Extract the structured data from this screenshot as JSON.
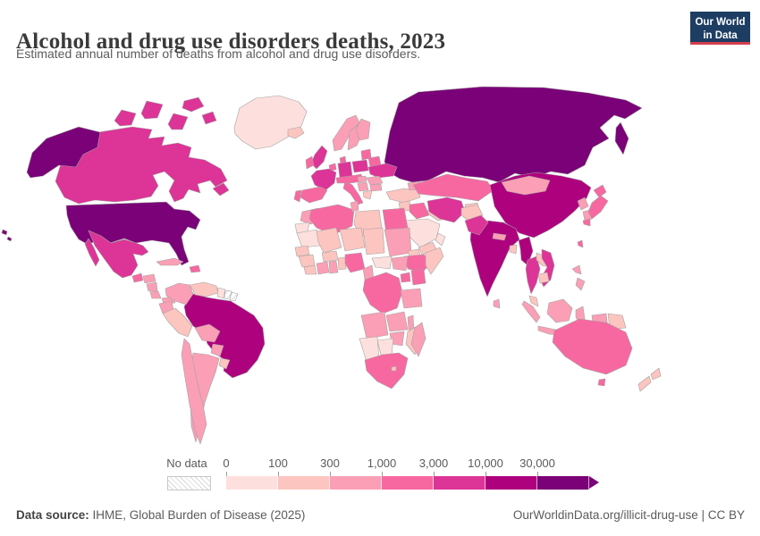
{
  "header": {
    "title": "Alcohol and drug use disorders deaths, 2023",
    "subtitle": "Estimated annual number of deaths from alcohol and drug use disorders.",
    "logo": {
      "line1": "Our World",
      "line2": "in Data",
      "bg_color": "#1d3d63",
      "accent_color": "#d73e4d"
    }
  },
  "legend": {
    "no_data_label": "No data",
    "ticks": [
      "0",
      "100",
      "300",
      "1,000",
      "3,000",
      "10,000",
      "30,000"
    ],
    "bins": [
      {
        "range": "0–100",
        "color": "#fde0dd"
      },
      {
        "range": "100–300",
        "color": "#fcc5c0"
      },
      {
        "range": "300–1,000",
        "color": "#fa9fb5"
      },
      {
        "range": "1,000–3,000",
        "color": "#f768a1"
      },
      {
        "range": "3,000–10,000",
        "color": "#dd3497"
      },
      {
        "range": "10,000–30,000",
        "color": "#ae017e"
      },
      {
        "range": "30,000+",
        "color": "#7a0177"
      }
    ]
  },
  "footer": {
    "source_label": "Data source:",
    "source_text": " IHME, Global Burden of Disease (2025)",
    "right_text": "OurWorldinData.org/illicit-drug-use | CC BY"
  },
  "chart_data": {
    "type": "choropleth",
    "title": "Alcohol and drug use disorders deaths, 2023",
    "subtitle": "Estimated annual number of deaths from alcohol and drug use disorders.",
    "unit": "deaths per year",
    "year": 2023,
    "scale": "log-binned",
    "bin_edges": [
      0,
      100,
      300,
      1000,
      3000,
      10000,
      30000
    ],
    "bin_labels": [
      "0–100",
      "100–300",
      "300–1,000",
      "1,000–3,000",
      "3,000–10,000",
      "10,000–30,000",
      "30,000+"
    ],
    "bin_colors": [
      "#fde0dd",
      "#fcc5c0",
      "#fa9fb5",
      "#f768a1",
      "#dd3497",
      "#ae017e",
      "#7a0177"
    ],
    "no_data": "hatched white",
    "countries": {
      "usa": {
        "name": "United States",
        "bin": 6
      },
      "canada": {
        "name": "Canada",
        "bin": 4
      },
      "greenland": {
        "name": "Greenland",
        "bin": 0
      },
      "mexico": {
        "name": "Mexico",
        "bin": 4
      },
      "guatemala": {
        "name": "Guatemala",
        "bin": 3
      },
      "honduras": {
        "name": "Honduras",
        "bin": 2
      },
      "nicaragua": {
        "name": "Nicaragua",
        "bin": 2
      },
      "costa-rica": {
        "name": "Costa Rica",
        "bin": 2
      },
      "panama": {
        "name": "Panama",
        "bin": 2
      },
      "cuba": {
        "name": "Cuba",
        "bin": 2
      },
      "hispaniola": {
        "name": "Dominican Republic / Haiti",
        "bin": 3
      },
      "brazil": {
        "name": "Brazil",
        "bin": 5
      },
      "colombia": {
        "name": "Colombia",
        "bin": 2
      },
      "venezuela": {
        "name": "Venezuela",
        "bin": 1
      },
      "guyana": {
        "name": "Guyana",
        "bin": 0
      },
      "suriname": {
        "name": "Suriname",
        "bin": -1
      },
      "french-guiana": {
        "name": "French Guiana",
        "bin": -1
      },
      "ecuador": {
        "name": "Ecuador",
        "bin": 2
      },
      "peru": {
        "name": "Peru",
        "bin": 1
      },
      "bolivia": {
        "name": "Bolivia",
        "bin": 2
      },
      "paraguay": {
        "name": "Paraguay",
        "bin": 2
      },
      "chile": {
        "name": "Chile",
        "bin": 2
      },
      "argentina": {
        "name": "Argentina",
        "bin": 2
      },
      "uruguay": {
        "name": "Uruguay",
        "bin": 1
      },
      "iceland": {
        "name": "Iceland",
        "bin": 1
      },
      "norway": {
        "name": "Norway",
        "bin": 2
      },
      "sweden": {
        "name": "Sweden",
        "bin": 2
      },
      "finland": {
        "name": "Finland",
        "bin": 2
      },
      "uk": {
        "name": "United Kingdom",
        "bin": 4
      },
      "ireland": {
        "name": "Ireland",
        "bin": 3
      },
      "denmark": {
        "name": "Denmark",
        "bin": 3
      },
      "benelux": {
        "name": "Belgium / Netherlands",
        "bin": 3
      },
      "germany": {
        "name": "Germany",
        "bin": 4
      },
      "france": {
        "name": "France",
        "bin": 4
      },
      "spain": {
        "name": "Spain",
        "bin": 3
      },
      "portugal": {
        "name": "Portugal",
        "bin": 3
      },
      "italy": {
        "name": "Italy",
        "bin": 3
      },
      "central-europe": {
        "name": "Switzerland / Austria / Czechia",
        "bin": 3
      },
      "poland": {
        "name": "Poland",
        "bin": 4
      },
      "baltics": {
        "name": "Baltic states",
        "bin": 3
      },
      "belarus": {
        "name": "Belarus",
        "bin": 3
      },
      "ukraine": {
        "name": "Ukraine",
        "bin": 4
      },
      "romania": {
        "name": "Romania",
        "bin": 2
      },
      "hungary": {
        "name": "Hungary",
        "bin": 2
      },
      "balkans": {
        "name": "Balkans",
        "bin": 2
      },
      "greece": {
        "name": "Greece",
        "bin": 1
      },
      "bulgaria": {
        "name": "Bulgaria",
        "bin": 2
      },
      "turkey": {
        "name": "Turkey",
        "bin": 1
      },
      "caucasus": {
        "name": "Georgia / Azerbaijan",
        "bin": 2
      },
      "russia": {
        "name": "Russia",
        "bin": 6
      },
      "kazakhstan": {
        "name": "Kazakhstan",
        "bin": 3
      },
      "uzbekistan": {
        "name": "Uzbekistan",
        "bin": 3
      },
      "turkmenistan": {
        "name": "Turkmenistan",
        "bin": 1
      },
      "kyrgyzstan-tajikistan": {
        "name": "Kyrgyzstan / Tajikistan",
        "bin": 1
      },
      "syria": {
        "name": "Syria",
        "bin": 1
      },
      "levant": {
        "name": "Israel / Jordan",
        "bin": 2
      },
      "iraq": {
        "name": "Iraq",
        "bin": 3
      },
      "iran": {
        "name": "Iran",
        "bin": 4
      },
      "saudi-arabia": {
        "name": "Saudi Arabia",
        "bin": 0
      },
      "yemen": {
        "name": "Yemen",
        "bin": 1
      },
      "oman": {
        "name": "Oman",
        "bin": 0
      },
      "afghanistan": {
        "name": "Afghanistan",
        "bin": 1
      },
      "pakistan": {
        "name": "Pakistan",
        "bin": 4
      },
      "india": {
        "name": "India",
        "bin": 5
      },
      "nepal": {
        "name": "Nepal",
        "bin": 2
      },
      "bangladesh": {
        "name": "Bangladesh",
        "bin": 1
      },
      "sri-lanka": {
        "name": "Sri Lanka",
        "bin": 2
      },
      "china": {
        "name": "China",
        "bin": 5
      },
      "mongolia": {
        "name": "Mongolia",
        "bin": 2
      },
      "north-korea": {
        "name": "North Korea",
        "bin": 2
      },
      "south-korea": {
        "name": "South Korea",
        "bin": 2
      },
      "japan": {
        "name": "Japan",
        "bin": 3
      },
      "taiwan": {
        "name": "Taiwan",
        "bin": 3
      },
      "myanmar": {
        "name": "Myanmar",
        "bin": 5
      },
      "thailand": {
        "name": "Thailand",
        "bin": 4
      },
      "laos": {
        "name": "Laos",
        "bin": 1
      },
      "vietnam": {
        "name": "Vietnam",
        "bin": 4
      },
      "cambodia": {
        "name": "Cambodia",
        "bin": 1
      },
      "malaysia": {
        "name": "Malaysia",
        "bin": 1
      },
      "indonesia": {
        "name": "Indonesia",
        "bin": 2
      },
      "papua-new-guinea": {
        "name": "Papua New Guinea",
        "bin": 1
      },
      "philippines": {
        "name": "Philippines",
        "bin": 2
      },
      "morocco": {
        "name": "Morocco",
        "bin": 2
      },
      "western-sahara": {
        "name": "Western Sahara",
        "bin": 0
      },
      "algeria": {
        "name": "Algeria",
        "bin": 3
      },
      "tunisia": {
        "name": "Tunisia",
        "bin": 2
      },
      "libya": {
        "name": "Libya",
        "bin": 1
      },
      "egypt": {
        "name": "Egypt",
        "bin": 3
      },
      "mauritania": {
        "name": "Mauritania",
        "bin": 0
      },
      "mali": {
        "name": "Mali",
        "bin": 1
      },
      "niger": {
        "name": "Niger",
        "bin": 1
      },
      "chad": {
        "name": "Chad",
        "bin": 1
      },
      "sudan": {
        "name": "Sudan",
        "bin": 2
      },
      "eritrea": {
        "name": "Eritrea",
        "bin": 1
      },
      "ethiopia": {
        "name": "Ethiopia",
        "bin": 3
      },
      "somalia": {
        "name": "Somalia",
        "bin": 1
      },
      "senegal": {
        "name": "Senegal",
        "bin": 1
      },
      "guinea": {
        "name": "Guinea",
        "bin": 1
      },
      "sierra-leone-liberia": {
        "name": "Sierra Leone / Liberia",
        "bin": 1
      },
      "ivory-coast": {
        "name": "Côte d'Ivoire",
        "bin": 2
      },
      "ghana": {
        "name": "Ghana",
        "bin": 2
      },
      "burkina-faso": {
        "name": "Burkina Faso",
        "bin": 1
      },
      "togo-benin": {
        "name": "Togo / Benin",
        "bin": 1
      },
      "nigeria": {
        "name": "Nigeria",
        "bin": 3
      },
      "cameroon": {
        "name": "Cameroon",
        "bin": 2
      },
      "central-african-republic": {
        "name": "Central African Republic",
        "bin": 0
      },
      "south-sudan": {
        "name": "South Sudan",
        "bin": 2
      },
      "drc": {
        "name": "Democratic Republic of Congo",
        "bin": 3
      },
      "uganda": {
        "name": "Uganda",
        "bin": 3
      },
      "kenya": {
        "name": "Kenya",
        "bin": 3
      },
      "tanzania": {
        "name": "Tanzania",
        "bin": 2
      },
      "angola": {
        "name": "Angola",
        "bin": 2
      },
      "zambia": {
        "name": "Zambia",
        "bin": 2
      },
      "malawi": {
        "name": "Malawi",
        "bin": 2
      },
      "mozambique": {
        "name": "Mozambique",
        "bin": 1
      },
      "zimbabwe": {
        "name": "Zimbabwe",
        "bin": 2
      },
      "botswana": {
        "name": "Botswana",
        "bin": 0
      },
      "namibia": {
        "name": "Namibia",
        "bin": 0
      },
      "south-africa": {
        "name": "South Africa",
        "bin": 3
      },
      "lesotho": {
        "name": "Lesotho",
        "bin": 1
      },
      "madagascar": {
        "name": "Madagascar",
        "bin": 2
      },
      "australia": {
        "name": "Australia",
        "bin": 3
      },
      "new-zealand": {
        "name": "New Zealand",
        "bin": 1
      }
    }
  }
}
